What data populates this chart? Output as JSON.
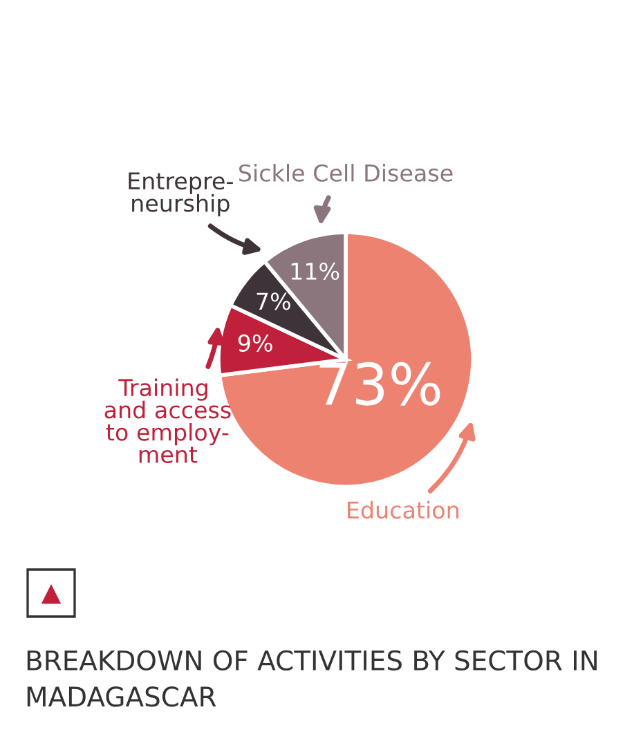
{
  "chart_data": {
    "type": "pie",
    "title": "BREAKDOWN OF ACTIVITIES BY SECTOR IN MADAGASCAR",
    "categories": [
      "Education",
      "Training and access to employ-ment",
      "Entrepre-neurship",
      "Sickle Cell Disease"
    ],
    "values": [
      73,
      9,
      7,
      11
    ],
    "colors": [
      "#ee8270",
      "#c0203a",
      "#3d3338",
      "#8a767c"
    ],
    "value_labels": [
      "73%",
      "9%",
      "7%",
      "11%"
    ],
    "legend": false
  }
}
